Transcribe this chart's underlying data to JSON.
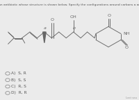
{
  "title": "Streptimidone is an antibiotic whose structure is shown below. Specify the configurations around carbons a and b, respectively.",
  "title_fontsize": 3.2,
  "bg_color": "#ebebeb",
  "panel_bg": "#f5f5f5",
  "line_color": "#666666",
  "text_color": "#666666",
  "options": [
    "A)  S, R",
    "B)  S, S",
    "C)  R, S",
    "D)  R, R"
  ],
  "option_fontsize": 4.2,
  "footer": "Last sau",
  "lw": 0.65
}
